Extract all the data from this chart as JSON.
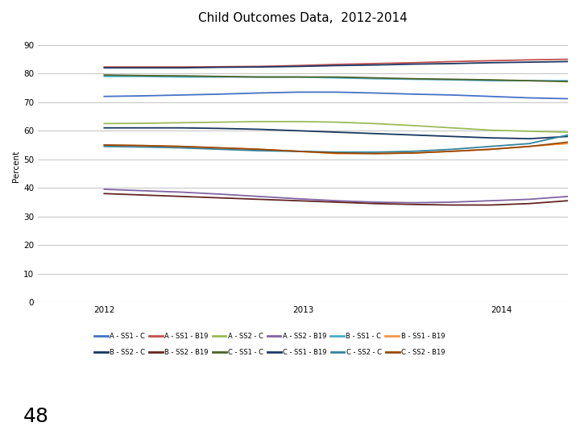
{
  "title": "Child Outcomes Data,  2012-2014",
  "ylabel": "Percent",
  "x_tick_labels": [
    "2012",
    "2013",
    "2014"
  ],
  "x_tick_positions": [
    0.25,
    1.0,
    1.75
  ],
  "ylim": [
    0,
    95
  ],
  "yticks": [
    0,
    10,
    20,
    30,
    40,
    50,
    60,
    70,
    80,
    90
  ],
  "xlim": [
    0.0,
    2.0
  ],
  "series": [
    {
      "label": "A - SS1 - C",
      "color": "#4472C4",
      "values": [
        72.0,
        72.2,
        72.5,
        72.8,
        73.2,
        73.5,
        73.5,
        73.2,
        72.8,
        72.5,
        72.0,
        71.5,
        71.2
      ]
    },
    {
      "label": "A - SS1 - B19",
      "color": "#C0504D",
      "values": [
        82.3,
        82.3,
        82.3,
        82.4,
        82.5,
        82.8,
        83.2,
        83.5,
        83.8,
        84.2,
        84.5,
        84.8,
        85.0
      ]
    },
    {
      "label": "A - SS2 - C",
      "color": "#9BBB59",
      "values": [
        62.5,
        62.6,
        62.8,
        63.0,
        63.2,
        63.2,
        63.0,
        62.5,
        61.8,
        61.0,
        60.2,
        59.8,
        59.5
      ]
    },
    {
      "label": "A - SS2 - B19",
      "color": "#8064A2",
      "values": [
        39.5,
        39.0,
        38.5,
        37.8,
        37.0,
        36.2,
        35.5,
        35.0,
        34.8,
        35.0,
        35.5,
        36.0,
        37.0
      ]
    },
    {
      "label": "B - SS1 - C",
      "color": "#4BACC6",
      "values": [
        79.0,
        79.0,
        78.8,
        78.8,
        78.8,
        78.8,
        78.5,
        78.2,
        78.0,
        77.8,
        77.5,
        77.5,
        77.5
      ]
    },
    {
      "label": "B - SS1 - B19",
      "color": "#F79646",
      "values": [
        55.0,
        54.8,
        54.5,
        54.0,
        53.5,
        52.8,
        52.0,
        52.0,
        52.2,
        52.8,
        53.5,
        54.5,
        55.5
      ]
    },
    {
      "label": "B - SS2 - C",
      "color": "#17375E",
      "values": [
        61.0,
        61.0,
        61.0,
        60.8,
        60.5,
        60.0,
        59.5,
        59.0,
        58.5,
        58.0,
        57.5,
        57.2,
        58.0
      ]
    },
    {
      "label": "B - SS2 - B19",
      "color": "#632523",
      "values": [
        38.0,
        37.5,
        37.0,
        36.5,
        36.0,
        35.5,
        35.0,
        34.5,
        34.2,
        34.0,
        34.0,
        34.5,
        35.5
      ]
    },
    {
      "label": "C - SS1 - C",
      "color": "#4E6228",
      "values": [
        79.5,
        79.3,
        79.2,
        79.0,
        78.8,
        78.8,
        78.8,
        78.5,
        78.2,
        78.0,
        77.8,
        77.5,
        77.2
      ]
    },
    {
      "label": "C - SS1 - B19",
      "color": "#1F3864",
      "values": [
        82.0,
        82.0,
        82.0,
        82.2,
        82.3,
        82.5,
        82.8,
        83.0,
        83.3,
        83.5,
        83.8,
        84.0,
        84.2
      ]
    },
    {
      "label": "C - SS2 - C",
      "color": "#31849B",
      "values": [
        54.5,
        54.3,
        54.0,
        53.5,
        53.0,
        52.8,
        52.5,
        52.5,
        52.8,
        53.5,
        54.5,
        55.5,
        58.5
      ]
    },
    {
      "label": "C - SS2 - B19",
      "color": "#974706",
      "values": [
        55.0,
        54.8,
        54.5,
        54.0,
        53.5,
        52.8,
        52.2,
        52.0,
        52.2,
        52.8,
        53.5,
        54.5,
        56.0
      ]
    }
  ],
  "background_color": "#FFFFFF",
  "grid_color": "#C8C8C8",
  "title_fontsize": 11,
  "axis_fontsize": 7.5,
  "legend_fontsize": 6.0,
  "page_number": "48"
}
